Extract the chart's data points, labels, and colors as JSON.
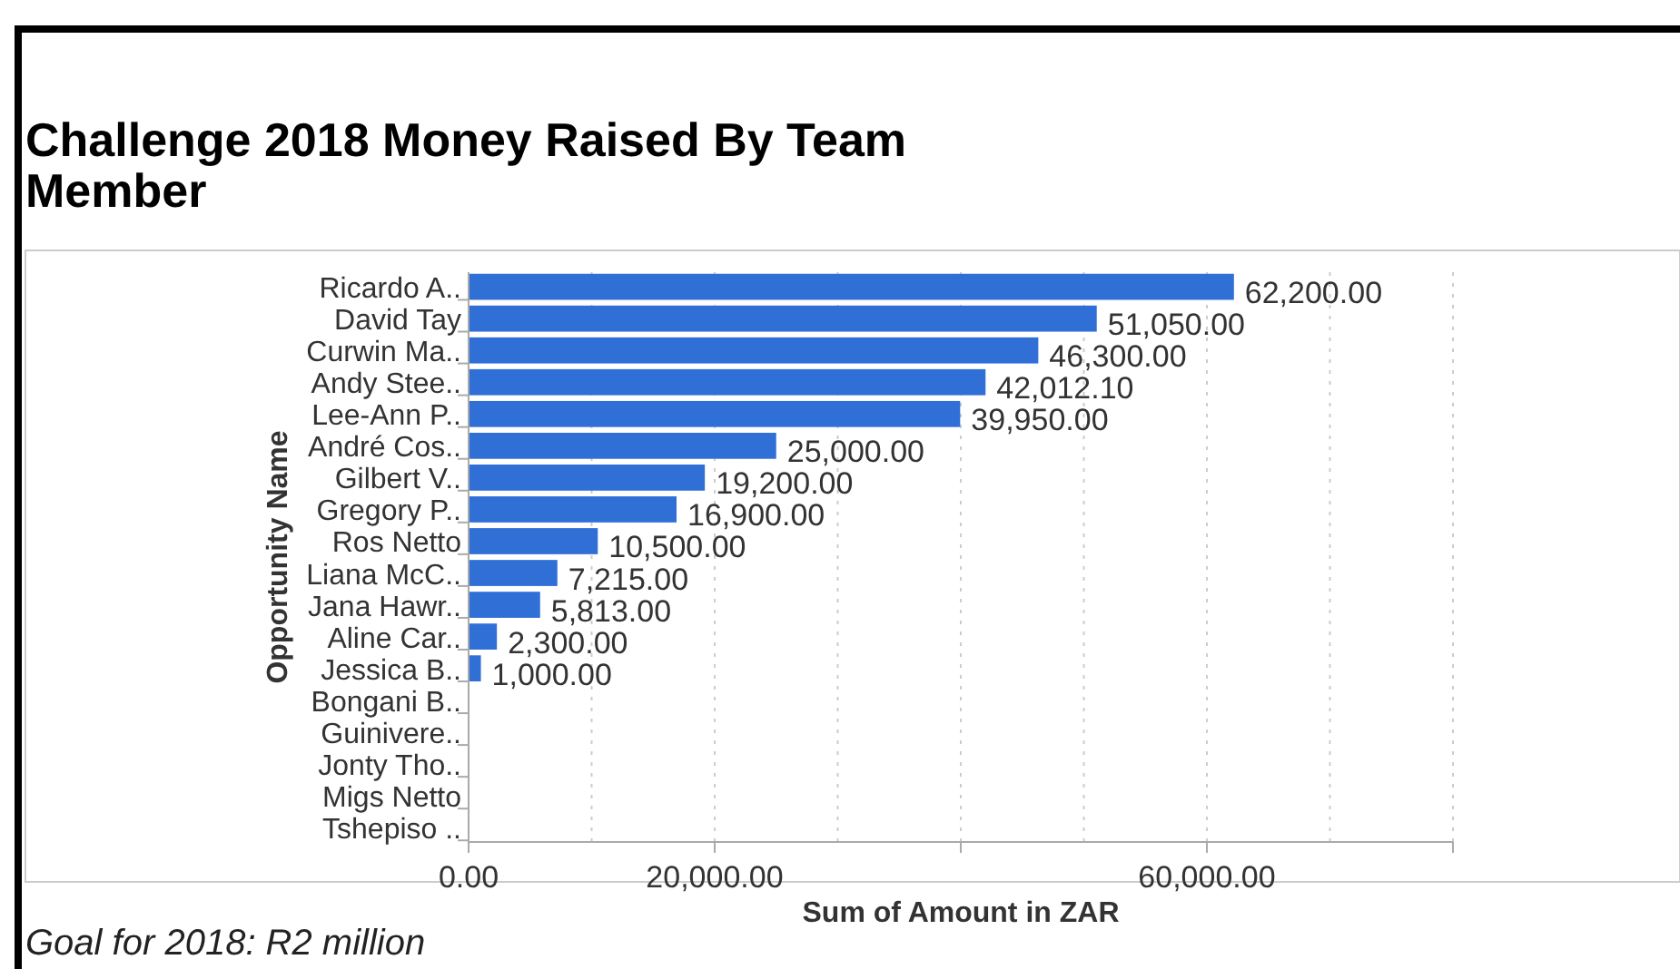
{
  "chart_data": {
    "type": "bar",
    "orientation": "horizontal",
    "title": "Challenge 2018 Money Raised By Team Member",
    "xlabel": "Sum of Amount in ZAR",
    "ylabel": "Opportunity Name",
    "categories": [
      "Ricardo A..",
      "David Tay",
      "Curwin Ma..",
      "Andy Stee..",
      "Lee-Ann P..",
      "André Cos..",
      "Gilbert V..",
      "Gregory P..",
      "Ros Netto",
      "Liana McC..",
      "Jana Hawr..",
      "Aline Car..",
      "Jessica B..",
      "Bongani B..",
      "Guinivere..",
      "Jonty Tho..",
      "Migs Netto",
      "Tshepiso .."
    ],
    "values": [
      62200,
      51050,
      46300,
      42012.1,
      39950,
      25000,
      19200,
      16900,
      10500,
      7215,
      5813,
      2300,
      1000,
      null,
      null,
      null,
      null,
      null
    ],
    "value_labels": [
      "62,200.00",
      "51,050.00",
      "46,300.00",
      "42,012.10",
      "39,950.00",
      "25,000.00",
      "19,200.00",
      "16,900.00",
      "10,500.00",
      "7,215.00",
      "5,813.00",
      "2,300.00",
      "1,000.00",
      null,
      null,
      null,
      null,
      null
    ],
    "color": "#2f6fd6",
    "xlim": [
      0,
      80000
    ],
    "xticks": [
      {
        "value": 0,
        "label": "0.00"
      },
      {
        "value": 20000,
        "label": "20,000.00"
      },
      {
        "value": 40000,
        "label": null
      },
      {
        "value": 60000,
        "label": "60,000.00"
      },
      {
        "value": 80000,
        "label": null
      }
    ],
    "grid": "x",
    "annotations": [
      "Goal for 2018: R2 million"
    ]
  }
}
